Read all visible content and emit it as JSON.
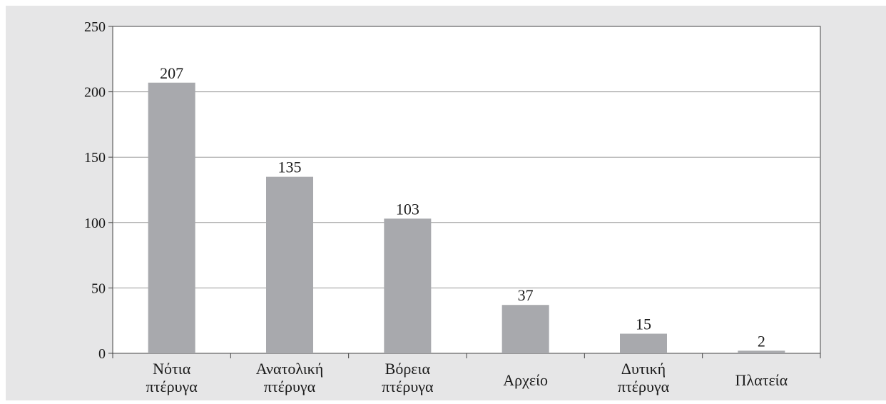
{
  "chart_data": {
    "type": "bar",
    "categories": [
      [
        "Νότια",
        "πτέρυγα"
      ],
      [
        "Ανατολική",
        "πτέρυγα"
      ],
      [
        "Βόρεια",
        "πτέρυγα"
      ],
      [
        "Αρχείο"
      ],
      [
        "Δυτική",
        "πτέρυγα"
      ],
      [
        "Πλατεία"
      ]
    ],
    "values": [
      207,
      135,
      103,
      37,
      15,
      2
    ],
    "data_labels": [
      "207",
      "135",
      "103",
      "37",
      "15",
      "2"
    ],
    "ylim": [
      0,
      250
    ],
    "yticks": [
      0,
      50,
      100,
      150,
      200,
      250
    ],
    "grid": true,
    "bar_color": "#a8a9ad",
    "plot_background": "#ffffff",
    "frame_background": "#e6e6e7"
  }
}
